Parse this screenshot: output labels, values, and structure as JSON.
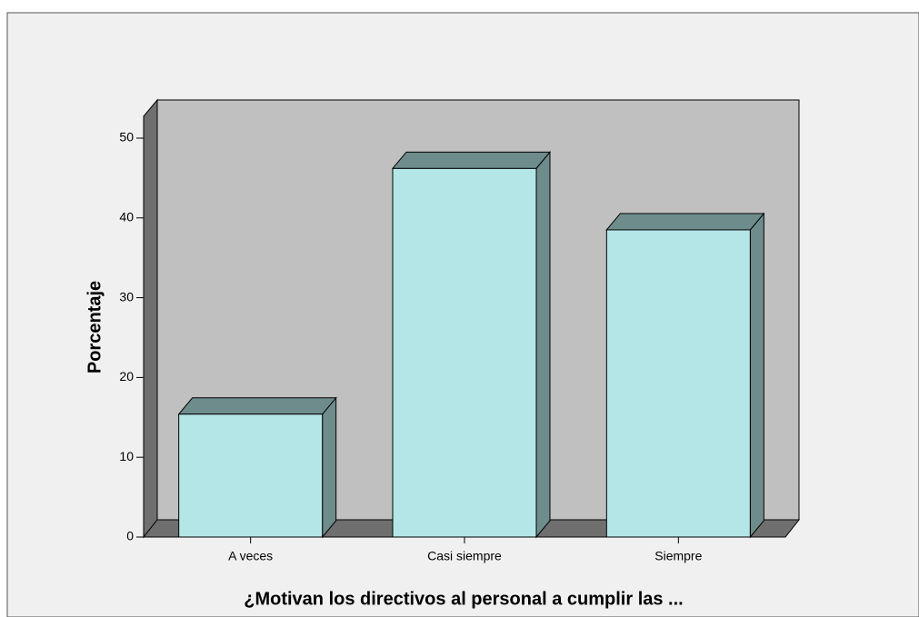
{
  "chart_data": {
    "type": "bar3d",
    "x_label": "¿Motivan los directivos al personal a cumplir las ...",
    "y_label": "Porcentaje",
    "categories": [
      "A veces",
      "Casi siempre",
      "Siempre"
    ],
    "values": [
      15.4,
      46.2,
      38.5
    ],
    "color": "#b4e6e8",
    "ylim": [
      0,
      50
    ],
    "yticks": [
      0,
      10,
      20,
      30,
      40,
      50
    ]
  }
}
